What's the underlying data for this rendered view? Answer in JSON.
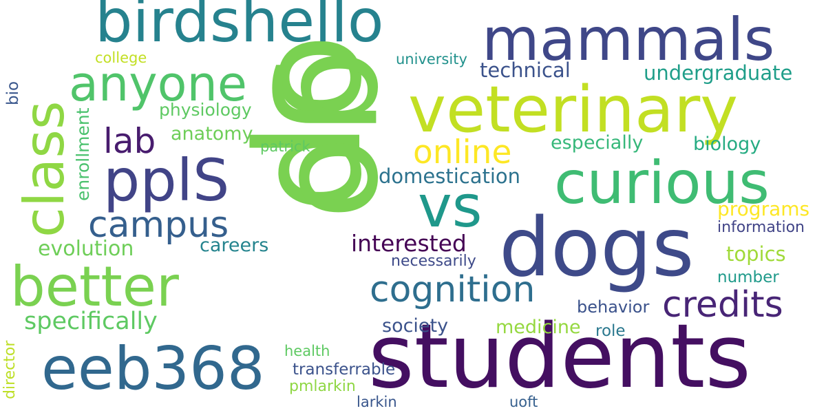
{
  "words": [
    {
      "text": "do",
      "color": "#7ad151"
    },
    {
      "text": "go",
      "color": "#7ad151"
    },
    {
      "text": "students",
      "color": "#440f61"
    },
    {
      "text": "dogs",
      "color": "#3e4a89"
    },
    {
      "text": "veterinary",
      "color": "#c2df23"
    },
    {
      "text": "birdshello",
      "color": "#26828e"
    },
    {
      "text": "mammals",
      "color": "#3f4788"
    },
    {
      "text": "curious",
      "color": "#3fbc73"
    },
    {
      "text": "class",
      "color": "#8fd744"
    },
    {
      "text": "eeb368",
      "color": "#31688e"
    },
    {
      "text": "anyone",
      "color": "#50c46a"
    },
    {
      "text": "pplS",
      "color": "#414487"
    },
    {
      "text": "better",
      "color": "#7ad151"
    },
    {
      "text": "vs",
      "color": "#1f988b"
    },
    {
      "text": "campus",
      "color": "#355f8d"
    },
    {
      "text": "credits",
      "color": "#482576"
    },
    {
      "text": "cognition",
      "color": "#2e6e8e"
    },
    {
      "text": "online",
      "color": "#fde725"
    },
    {
      "text": "lab",
      "color": "#481c6e"
    },
    {
      "text": "interested",
      "color": "#440154"
    },
    {
      "text": "specifically",
      "color": "#5ec962"
    },
    {
      "text": "evolution",
      "color": "#6ece58"
    },
    {
      "text": "technical",
      "color": "#3b528b"
    },
    {
      "text": "undergraduate",
      "color": "#1f9e89"
    },
    {
      "text": "domestication",
      "color": "#2c728e"
    },
    {
      "text": "especially",
      "color": "#35b779"
    },
    {
      "text": "biology",
      "color": "#25ab82"
    },
    {
      "text": "careers",
      "color": "#25848e"
    },
    {
      "text": "programs",
      "color": "#fde725"
    },
    {
      "text": "topics",
      "color": "#a0da39"
    },
    {
      "text": "anatomy",
      "color": "#6ece58"
    },
    {
      "text": "physiology",
      "color": "#5ec962"
    },
    {
      "text": "society",
      "color": "#3b528b"
    },
    {
      "text": "medicine",
      "color": "#95d840"
    },
    {
      "text": "role",
      "color": "#2a788e"
    },
    {
      "text": "number",
      "color": "#1f9a8a"
    },
    {
      "text": "information",
      "color": "#414487"
    },
    {
      "text": "behavior",
      "color": "#3b528b"
    },
    {
      "text": "necessarily",
      "color": "#3e4a89"
    },
    {
      "text": "patrick",
      "color": "#5ec962"
    },
    {
      "text": "college",
      "color": "#c2df23"
    },
    {
      "text": "university",
      "color": "#21918c"
    },
    {
      "text": "transferrable",
      "color": "#3b528b"
    },
    {
      "text": "pmlarkin",
      "color": "#8fd744"
    },
    {
      "text": "health",
      "color": "#5ec962"
    },
    {
      "text": "larkin",
      "color": "#39568c"
    },
    {
      "text": "uoft",
      "color": "#355f8d"
    },
    {
      "text": "enrollment",
      "color": "#4ac16d"
    },
    {
      "text": "bio",
      "color": "#39568c"
    },
    {
      "text": "director",
      "color": "#bddf26"
    }
  ]
}
